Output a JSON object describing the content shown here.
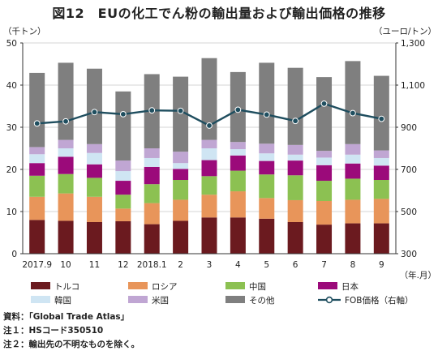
{
  "title": "図12　EUの化工でん粉の輸出量および輸出価格の推移",
  "notes": [
    "資料：「Global Trade Atlas」",
    "注１：HSコード350510",
    "注２：輸出先の不明なものを除く。"
  ],
  "chart_data": {
    "type": "bar",
    "stacked": true,
    "title": "図12　EUの化工でん粉の輸出量および輸出価格の推移",
    "left_axis_unit": "（千トン）",
    "right_axis_unit": "（ユーロ/トン）",
    "x_axis_unit": "（年.月）",
    "categories": [
      "2017.9",
      "10",
      "11",
      "12",
      "2018.1",
      "2",
      "3",
      "4",
      "5",
      "6",
      "7",
      "8",
      "9"
    ],
    "ylim": [
      0,
      50
    ],
    "yticks": [
      0,
      10,
      20,
      30,
      40,
      50
    ],
    "y2lim": [
      300,
      1300
    ],
    "y2ticks": [
      "300",
      "500",
      "700",
      "900",
      "1,100",
      "1,300"
    ],
    "grid": true,
    "legend_position": "bottom",
    "series": [
      {
        "name": "トルコ",
        "color": "#6b1a1f",
        "values": [
          8.0,
          7.8,
          7.5,
          7.7,
          7.0,
          7.8,
          8.6,
          8.6,
          8.3,
          7.5,
          6.9,
          7.2,
          7.2
        ]
      },
      {
        "name": "ロシア",
        "color": "#e8955a",
        "values": [
          5.5,
          6.5,
          6.0,
          3.0,
          5.0,
          5.0,
          5.4,
          6.2,
          4.9,
          5.2,
          5.6,
          5.6,
          5.8
        ]
      },
      {
        "name": "中国",
        "color": "#8cc152",
        "values": [
          5.0,
          4.6,
          4.5,
          3.3,
          4.5,
          4.7,
          4.4,
          4.9,
          5.6,
          5.9,
          4.8,
          5.0,
          4.5
        ]
      },
      {
        "name": "日本",
        "color": "#9b0a7a",
        "values": [
          3.0,
          4.1,
          3.2,
          3.3,
          4.1,
          2.6,
          3.8,
          3.6,
          3.2,
          3.5,
          3.7,
          3.6,
          3.4
        ]
      },
      {
        "name": "韓国",
        "color": "#cfe5f3",
        "values": [
          2.1,
          2.0,
          2.7,
          2.3,
          2.1,
          1.4,
          2.8,
          1.5,
          1.8,
          1.4,
          1.8,
          2.1,
          1.8
        ]
      },
      {
        "name": "米国",
        "color": "#c0a6d3",
        "values": [
          1.7,
          2.0,
          2.1,
          2.5,
          2.3,
          2.7,
          2.0,
          1.7,
          2.3,
          2.3,
          1.6,
          2.5,
          1.8
        ]
      },
      {
        "name": "その他",
        "color": "#7f7f7f",
        "values": [
          17.6,
          18.3,
          17.9,
          16.4,
          17.6,
          17.8,
          19.4,
          16.6,
          19.2,
          18.3,
          17.5,
          19.7,
          17.7
        ]
      }
    ],
    "line_series": {
      "name": "FOB価格（右軸）",
      "color": "#1f4e5f",
      "axis": "right",
      "values": [
        918,
        928,
        972,
        962,
        980,
        978,
        908,
        983,
        960,
        930,
        1012,
        967,
        940
      ]
    }
  }
}
